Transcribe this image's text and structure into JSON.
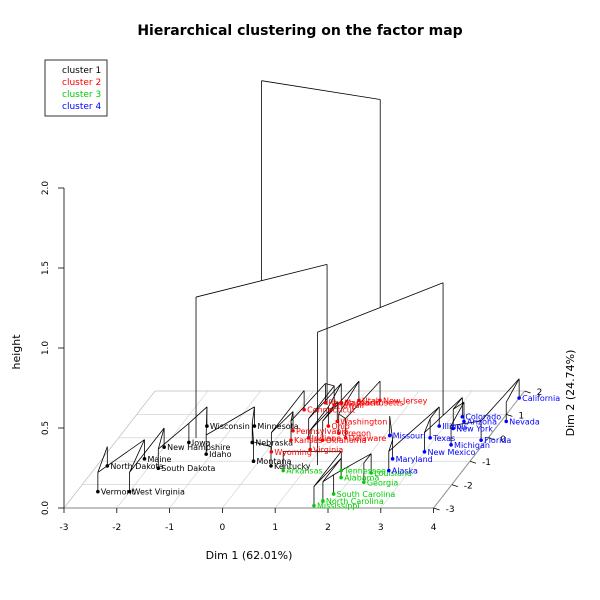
{
  "chart_data": {
    "type": "scatter",
    "title": "Hierarchical clustering on the factor map",
    "xlabel": "Dim 1 (62.01%)",
    "ylabel": "Dim 2 (24.74%)",
    "zlabel": "height",
    "xlim": [
      -3,
      4
    ],
    "ylim": [
      -3,
      2
    ],
    "zlim": [
      0,
      2
    ],
    "x_ticks": [
      "-3",
      "-2",
      "-1",
      "0",
      "1",
      "2",
      "3",
      "4"
    ],
    "y_ticks": [
      "-3",
      "-2",
      "-1",
      "0",
      "1",
      "2"
    ],
    "z_ticks": [
      "0.0",
      "0.5",
      "1.0",
      "1.5",
      "2.0"
    ],
    "grid": true,
    "legend_position": "top-left",
    "clusters": [
      {
        "name": "cluster 1",
        "color": "#000000"
      },
      {
        "name": "cluster 2",
        "color": "#ff0000"
      },
      {
        "name": "cluster 3",
        "color": "#00cd00"
      },
      {
        "name": "cluster 4",
        "color": "#0000ff"
      }
    ],
    "points": [
      {
        "label": "North Dakota",
        "cluster": 1,
        "x": -2.8,
        "y": -1.2
      },
      {
        "label": "Vermont",
        "cluster": 1,
        "x": -2.6,
        "y": -2.3
      },
      {
        "label": "West Virginia",
        "cluster": 1,
        "x": -2.0,
        "y": -2.3
      },
      {
        "label": "South Dakota",
        "cluster": 1,
        "x": -1.8,
        "y": -1.3
      },
      {
        "label": "Maine",
        "cluster": 1,
        "x": -2.2,
        "y": -0.9
      },
      {
        "label": "New Hampshire",
        "cluster": 1,
        "x": -2.0,
        "y": -0.4
      },
      {
        "label": "Iowa",
        "cluster": 1,
        "x": -1.6,
        "y": -0.2
      },
      {
        "label": "Wisconsin",
        "cluster": 1,
        "x": -1.5,
        "y": 0.5
      },
      {
        "label": "Minnesota",
        "cluster": 1,
        "x": -0.6,
        "y": 0.5
      },
      {
        "label": "Idaho",
        "cluster": 1,
        "x": -1.1,
        "y": -0.7
      },
      {
        "label": "Nebraska",
        "cluster": 1,
        "x": -0.4,
        "y": -0.2
      },
      {
        "label": "Montana",
        "cluster": 1,
        "x": -0.1,
        "y": -1.0
      },
      {
        "label": "Kentucky",
        "cluster": 1,
        "x": 0.3,
        "y": -1.2
      },
      {
        "label": "Connecticut",
        "cluster": 2,
        "x": 0.1,
        "y": 1.2
      },
      {
        "label": "Rhode Island",
        "cluster": 2,
        "x": 0.4,
        "y": 1.5
      },
      {
        "label": "Massachusetts",
        "cluster": 2,
        "x": 0.7,
        "y": 1.5
      },
      {
        "label": "Utah",
        "cluster": 2,
        "x": 1.0,
        "y": 1.6
      },
      {
        "label": "New Jersey",
        "cluster": 2,
        "x": 1.4,
        "y": 1.6
      },
      {
        "label": "Hawaii",
        "cluster": 2,
        "x": 0.6,
        "y": 1.4
      },
      {
        "label": "Washington",
        "cluster": 2,
        "x": 0.9,
        "y": 0.7
      },
      {
        "label": "Ohio",
        "cluster": 2,
        "x": 0.8,
        "y": 0.5
      },
      {
        "label": "Pennsylvania",
        "cluster": 2,
        "x": 0.2,
        "y": 0.3
      },
      {
        "label": "Oregon",
        "cluster": 2,
        "x": 1.1,
        "y": 0.2
      },
      {
        "label": "Indiana",
        "cluster": 2,
        "x": 0.6,
        "y": 0.0
      },
      {
        "label": "Kansas",
        "cluster": 2,
        "x": 0.3,
        "y": -0.1
      },
      {
        "label": "Delaware",
        "cluster": 2,
        "x": 1.3,
        "y": 0.0
      },
      {
        "label": "Oklahoma",
        "cluster": 2,
        "x": 0.9,
        "y": -0.1
      },
      {
        "label": "Wyoming",
        "cluster": 2,
        "x": 0.1,
        "y": -0.6
      },
      {
        "label": "Virginia",
        "cluster": 2,
        "x": 0.8,
        "y": -0.5
      },
      {
        "label": "Arkansas",
        "cluster": 3,
        "x": 0.6,
        "y": -1.4
      },
      {
        "label": "Tennessee",
        "cluster": 3,
        "x": 1.7,
        "y": -1.4
      },
      {
        "label": "Louisiana",
        "cluster": 3,
        "x": 2.3,
        "y": -1.5
      },
      {
        "label": "Alabama",
        "cluster": 3,
        "x": 1.8,
        "y": -1.7
      },
      {
        "label": "Georgia",
        "cluster": 3,
        "x": 2.3,
        "y": -1.9
      },
      {
        "label": "South Carolina",
        "cluster": 3,
        "x": 1.9,
        "y": -2.4
      },
      {
        "label": "North Carolina",
        "cluster": 3,
        "x": 1.8,
        "y": -2.7
      },
      {
        "label": "Mississippi",
        "cluster": 3,
        "x": 1.7,
        "y": -2.9
      },
      {
        "label": "Missouri",
        "cluster": 4,
        "x": 2.1,
        "y": 0.1
      },
      {
        "label": "Colorado",
        "cluster": 4,
        "x": 3.2,
        "y": 0.9
      },
      {
        "label": "Arizona",
        "cluster": 4,
        "x": 3.3,
        "y": 0.7
      },
      {
        "label": "Illinois",
        "cluster": 4,
        "x": 2.9,
        "y": 0.5
      },
      {
        "label": "Maryland",
        "cluster": 4,
        "x": 2.5,
        "y": -0.9
      },
      {
        "label": "Alaska",
        "cluster": 4,
        "x": 2.6,
        "y": -1.4
      },
      {
        "label": "Texas",
        "cluster": 4,
        "x": 2.9,
        "y": 0.0
      },
      {
        "label": "New York",
        "cluster": 4,
        "x": 3.2,
        "y": 0.4
      },
      {
        "label": "New Mexico",
        "cluster": 4,
        "x": 3.0,
        "y": -0.6
      },
      {
        "label": "Michigan",
        "cluster": 4,
        "x": 3.4,
        "y": -0.3
      },
      {
        "label": "California",
        "cluster": 4,
        "x": 4.0,
        "y": 1.7
      },
      {
        "label": "Nevada",
        "cluster": 4,
        "x": 4.1,
        "y": 0.7
      },
      {
        "label": "Florida",
        "cluster": 4,
        "x": 3.9,
        "y": -0.1
      }
    ]
  }
}
